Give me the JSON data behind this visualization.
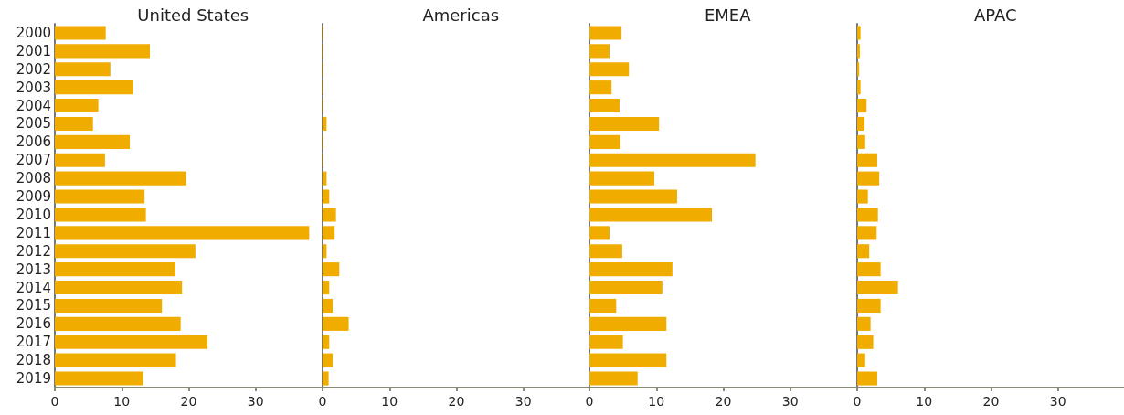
{
  "chart_data": [
    {
      "type": "bar",
      "orientation": "horizontal",
      "title": "United States",
      "categories": [
        "2000",
        "2001",
        "2002",
        "2003",
        "2004",
        "2005",
        "2006",
        "2007",
        "2008",
        "2009",
        "2010",
        "2011",
        "2012",
        "2013",
        "2014",
        "2015",
        "2016",
        "2017",
        "2018",
        "2019"
      ],
      "color": "#f0ad00",
      "xlim": [
        0,
        40
      ],
      "xticks": [
        0,
        10,
        20,
        30
      ],
      "values": [
        7.6,
        14.2,
        8.3,
        11.7,
        6.5,
        5.7,
        11.2,
        7.5,
        19.6,
        13.4,
        13.6,
        38.0,
        21.0,
        18.0,
        19.0,
        16.0,
        18.8,
        22.8,
        18.1,
        13.2
      ]
    },
    {
      "type": "bar",
      "orientation": "horizontal",
      "title": "Americas",
      "categories": [
        "2000",
        "2001",
        "2002",
        "2003",
        "2004",
        "2005",
        "2006",
        "2007",
        "2008",
        "2009",
        "2010",
        "2011",
        "2012",
        "2013",
        "2014",
        "2015",
        "2016",
        "2017",
        "2018",
        "2019"
      ],
      "color": "#f0ad00",
      "xlim": [
        0,
        40
      ],
      "xticks": [
        0,
        10,
        20,
        30
      ],
      "tick_labels": "x",
      "values": [
        0.1,
        0.1,
        0.1,
        0.1,
        0.1,
        0.6,
        0.1,
        0.1,
        0.6,
        1.0,
        2.0,
        1.8,
        0.6,
        2.5,
        1.0,
        1.5,
        3.9,
        1.0,
        1.5,
        0.9
      ]
    },
    {
      "type": "bar",
      "orientation": "horizontal",
      "title": "EMEA",
      "categories": [
        "2000",
        "2001",
        "2002",
        "2003",
        "2004",
        "2005",
        "2006",
        "2007",
        "2008",
        "2009",
        "2010",
        "2011",
        "2012",
        "2013",
        "2014",
        "2015",
        "2016",
        "2017",
        "2018",
        "2019"
      ],
      "color": "#f0ad00",
      "xlim": [
        0,
        40
      ],
      "xticks": [
        0,
        10,
        20,
        30
      ],
      "tick_labels": "x",
      "values": [
        4.8,
        3.0,
        5.9,
        3.3,
        4.5,
        10.4,
        4.6,
        24.8,
        9.7,
        13.1,
        18.3,
        3.0,
        4.9,
        12.4,
        10.9,
        4.0,
        11.5,
        5.0,
        11.5,
        7.2
      ]
    },
    {
      "type": "bar",
      "orientation": "horizontal",
      "title": "APAC",
      "categories": [
        "2000",
        "2001",
        "2002",
        "2003",
        "2004",
        "2005",
        "2006",
        "2007",
        "2008",
        "2009",
        "2010",
        "2011",
        "2012",
        "2013",
        "2014",
        "2015",
        "2016",
        "2017",
        "2018",
        "2019"
      ],
      "color": "#f0ad00",
      "xlim": [
        0,
        40
      ],
      "xticks": [
        0,
        10,
        20,
        30
      ],
      "tick_labels": "x",
      "values": [
        0.5,
        0.4,
        0.3,
        0.5,
        1.4,
        1.1,
        1.2,
        3.0,
        3.3,
        1.6,
        3.1,
        2.9,
        1.8,
        3.5,
        6.1,
        3.5,
        2.0,
        2.4,
        1.2,
        3.0
      ]
    }
  ]
}
